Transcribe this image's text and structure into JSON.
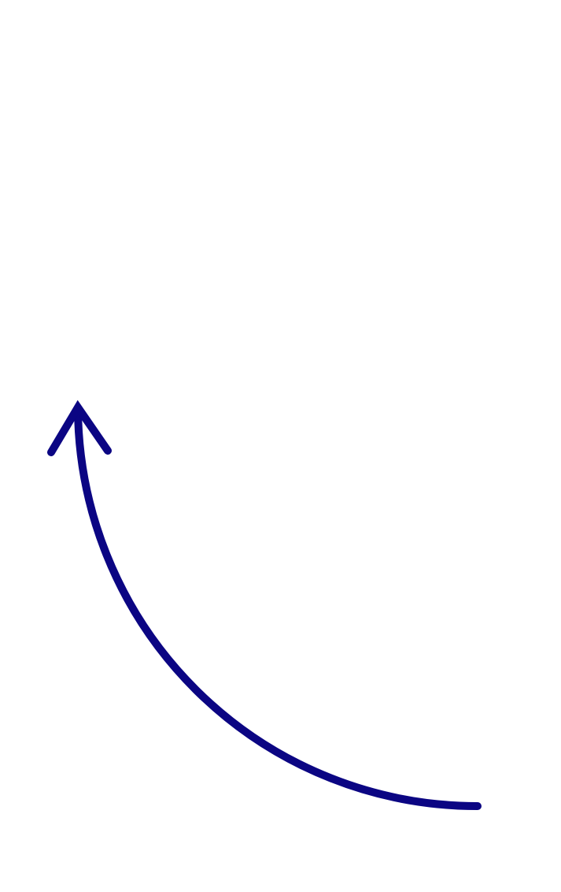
{
  "diagram": {
    "icon": "curved-arrow-up-left",
    "stroke_color": "#0b0583",
    "background_color": "#ffffff"
  }
}
